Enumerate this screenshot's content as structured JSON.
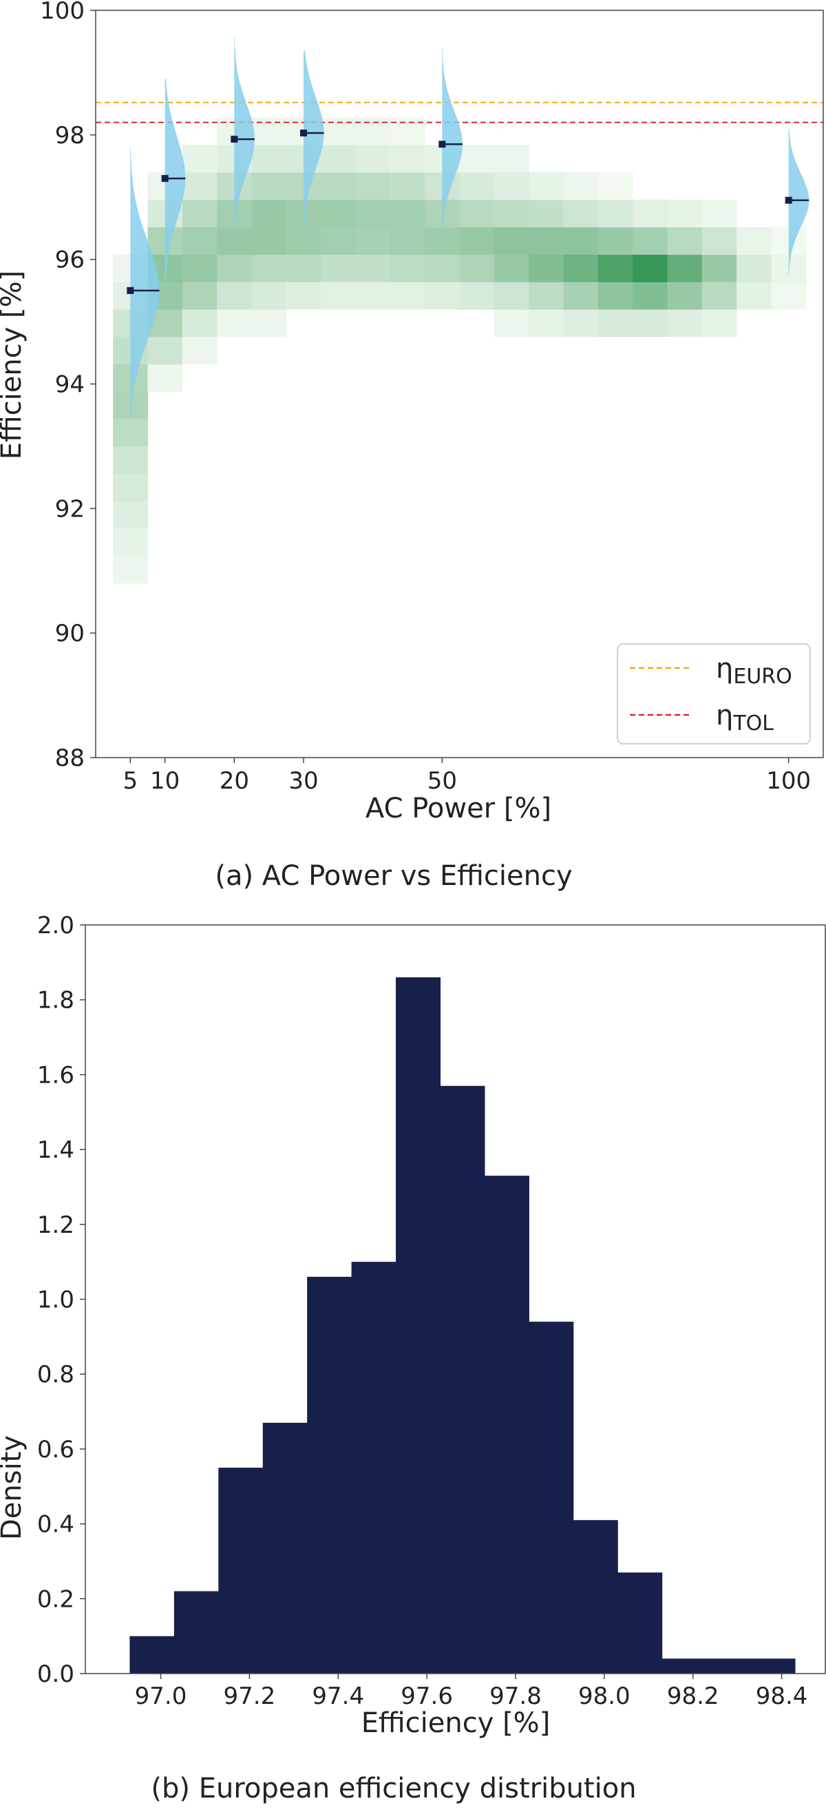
{
  "chart_data": [
    {
      "type": "heatmap",
      "panel": "a",
      "caption": "(a) AC Power vs Efficiency",
      "xlabel": "AC Power [%]",
      "ylabel": "Efficiency [%]",
      "ylim": [
        88,
        100
      ],
      "xlim": [
        0,
        105
      ],
      "x_ticks": [
        5,
        10,
        20,
        30,
        50,
        100
      ],
      "y_ticks": [
        88,
        90,
        92,
        94,
        96,
        98,
        100
      ],
      "grid": false,
      "legend_placement": "lower-right",
      "reference_lines": [
        {
          "name_main": "η",
          "name_sub": "EURO",
          "y": 98.52,
          "color": "#f5a623",
          "style": "dashed"
        },
        {
          "name_main": "η",
          "name_sub": "TOL",
          "y": 98.2,
          "color": "#e0262d",
          "style": "dashed"
        }
      ],
      "violins": [
        {
          "x": 5,
          "median": 95.5,
          "low": 93.5,
          "high": 97.8,
          "width": 0.2
        },
        {
          "x": 10,
          "median": 97.3,
          "low": 95.3,
          "high": 98.9,
          "width": 0.14
        },
        {
          "x": 20,
          "median": 97.93,
          "low": 96.5,
          "high": 99.6,
          "width": 0.14
        },
        {
          "x": 30,
          "median": 98.03,
          "low": 96.2,
          "high": 99.35,
          "width": 0.14
        },
        {
          "x": 50,
          "median": 97.85,
          "low": 96.5,
          "high": 99.4,
          "width": 0.14
        },
        {
          "x": 100,
          "median": 96.95,
          "low": 95.75,
          "high": 98.1,
          "width": 0.14
        }
      ],
      "heatmap_bins": {
        "x_start": 2.5,
        "x_step": 5,
        "y_start": 90.8,
        "y_step": 0.44,
        "columns": [
          [
            0.05,
            0.08,
            0.12,
            0.16,
            0.2,
            0.28,
            0.35,
            0.33,
            0.25,
            0.2,
            0.1,
            0.05,
            0,
            0,
            0,
            0,
            0,
            0
          ],
          [
            0,
            0,
            0,
            0,
            0,
            0,
            0,
            0.05,
            0.2,
            0.35,
            0.45,
            0.5,
            0.35,
            0.15,
            0.05,
            0,
            0,
            0
          ],
          [
            0,
            0,
            0,
            0,
            0,
            0,
            0,
            0,
            0.05,
            0.15,
            0.35,
            0.45,
            0.4,
            0.3,
            0.15,
            0.08,
            0,
            0
          ],
          [
            0,
            0,
            0,
            0,
            0,
            0,
            0,
            0,
            0,
            0.05,
            0.2,
            0.35,
            0.45,
            0.4,
            0.25,
            0.12,
            0.05,
            0
          ],
          [
            0,
            0,
            0,
            0,
            0,
            0,
            0,
            0,
            0,
            0.05,
            0.15,
            0.3,
            0.45,
            0.45,
            0.3,
            0.15,
            0.05,
            0
          ],
          [
            0,
            0,
            0,
            0,
            0,
            0,
            0,
            0,
            0,
            0,
            0.12,
            0.3,
            0.42,
            0.42,
            0.3,
            0.15,
            0.05,
            0
          ],
          [
            0,
            0,
            0,
            0,
            0,
            0,
            0,
            0,
            0,
            0,
            0.1,
            0.25,
            0.4,
            0.42,
            0.3,
            0.15,
            0.05,
            0
          ],
          [
            0,
            0,
            0,
            0,
            0,
            0,
            0,
            0,
            0,
            0,
            0.1,
            0.25,
            0.38,
            0.4,
            0.28,
            0.12,
            0.05,
            0
          ],
          [
            0,
            0,
            0,
            0,
            0,
            0,
            0,
            0,
            0,
            0,
            0.1,
            0.28,
            0.4,
            0.4,
            0.25,
            0.1,
            0.04,
            0
          ],
          [
            0,
            0,
            0,
            0,
            0,
            0,
            0,
            0,
            0,
            0,
            0.12,
            0.3,
            0.42,
            0.35,
            0.2,
            0.08,
            0,
            0
          ],
          [
            0,
            0,
            0,
            0,
            0,
            0,
            0,
            0,
            0,
            0,
            0.15,
            0.35,
            0.45,
            0.3,
            0.15,
            0.05,
            0,
            0
          ],
          [
            0,
            0,
            0,
            0,
            0,
            0,
            0,
            0,
            0,
            0.05,
            0.2,
            0.45,
            0.5,
            0.28,
            0.12,
            0.05,
            0,
            0
          ],
          [
            0,
            0,
            0,
            0,
            0,
            0,
            0,
            0,
            0,
            0.08,
            0.28,
            0.55,
            0.5,
            0.25,
            0.08,
            0,
            0,
            0
          ],
          [
            0,
            0,
            0,
            0,
            0,
            0,
            0,
            0,
            0,
            0.12,
            0.38,
            0.65,
            0.5,
            0.2,
            0.05,
            0,
            0,
            0
          ],
          [
            0,
            0,
            0,
            0,
            0,
            0,
            0,
            0,
            0,
            0.15,
            0.5,
            0.8,
            0.45,
            0.15,
            0.03,
            0,
            0,
            0
          ],
          [
            0,
            0,
            0,
            0,
            0,
            0,
            0,
            0,
            0,
            0.15,
            0.55,
            0.9,
            0.4,
            0.1,
            0,
            0,
            0,
            0
          ],
          [
            0,
            0,
            0,
            0,
            0,
            0,
            0,
            0,
            0,
            0.12,
            0.45,
            0.7,
            0.3,
            0.08,
            0,
            0,
            0,
            0
          ],
          [
            0,
            0,
            0,
            0,
            0,
            0,
            0,
            0,
            0,
            0.08,
            0.3,
            0.45,
            0.2,
            0.05,
            0,
            0,
            0,
            0
          ],
          [
            0,
            0,
            0,
            0,
            0,
            0,
            0,
            0,
            0,
            0,
            0.1,
            0.15,
            0.06,
            0,
            0,
            0,
            0,
            0
          ],
          [
            0,
            0,
            0,
            0,
            0,
            0,
            0,
            0,
            0,
            0,
            0.04,
            0.06,
            0.03,
            0,
            0,
            0,
            0,
            0
          ]
        ]
      }
    },
    {
      "type": "bar",
      "panel": "b",
      "caption": "(b) European efficiency distribution",
      "xlabel": "Efficiency [%]",
      "ylabel": "Density",
      "ylim": [
        0,
        2.0
      ],
      "xlim": [
        96.83,
        98.5
      ],
      "x_ticks": [
        97.0,
        97.2,
        97.4,
        97.6,
        97.8,
        98.0,
        98.2,
        98.4
      ],
      "x_tick_labels": [
        "97.0",
        "97.2",
        "97.4",
        "97.6",
        "97.8",
        "98.0",
        "98.2",
        "98.4"
      ],
      "y_ticks": [
        0.0,
        0.2,
        0.4,
        0.6,
        0.8,
        1.0,
        1.2,
        1.4,
        1.6,
        1.8,
        2.0
      ],
      "y_tick_labels": [
        "0.0",
        "0.2",
        "0.4",
        "0.6",
        "0.8",
        "1.0",
        "1.2",
        "1.4",
        "1.6",
        "1.8",
        "2.0"
      ],
      "bin_edges": [
        96.93,
        97.03,
        97.13,
        97.23,
        97.33,
        97.43,
        97.53,
        97.63,
        97.73,
        97.83,
        97.93,
        98.03,
        98.13,
        98.23,
        98.33,
        98.43
      ],
      "values": [
        0.1,
        0.22,
        0.55,
        0.67,
        1.06,
        1.1,
        1.86,
        1.57,
        1.33,
        0.94,
        0.41,
        0.27,
        0.04,
        0.04,
        0.04
      ],
      "bar_color": "#17204a",
      "grid": false
    }
  ]
}
